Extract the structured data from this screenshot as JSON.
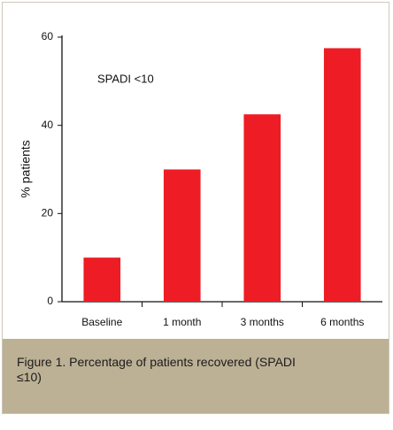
{
  "chart_data": {
    "type": "bar",
    "caption": "Figure 1. Percentage of patients recovered (SPADI ≤10)",
    "annotation": "SPADI <10",
    "y_label": "% patients",
    "categories": [
      "Baseline",
      "1 month",
      "3 months",
      "6 months"
    ],
    "values": [
      10,
      30,
      42.5,
      57.5
    ],
    "color": "#ee1c24",
    "ylim": [
      0,
      60
    ],
    "yticks": [
      0,
      20,
      40,
      60
    ],
    "grid": false
  }
}
